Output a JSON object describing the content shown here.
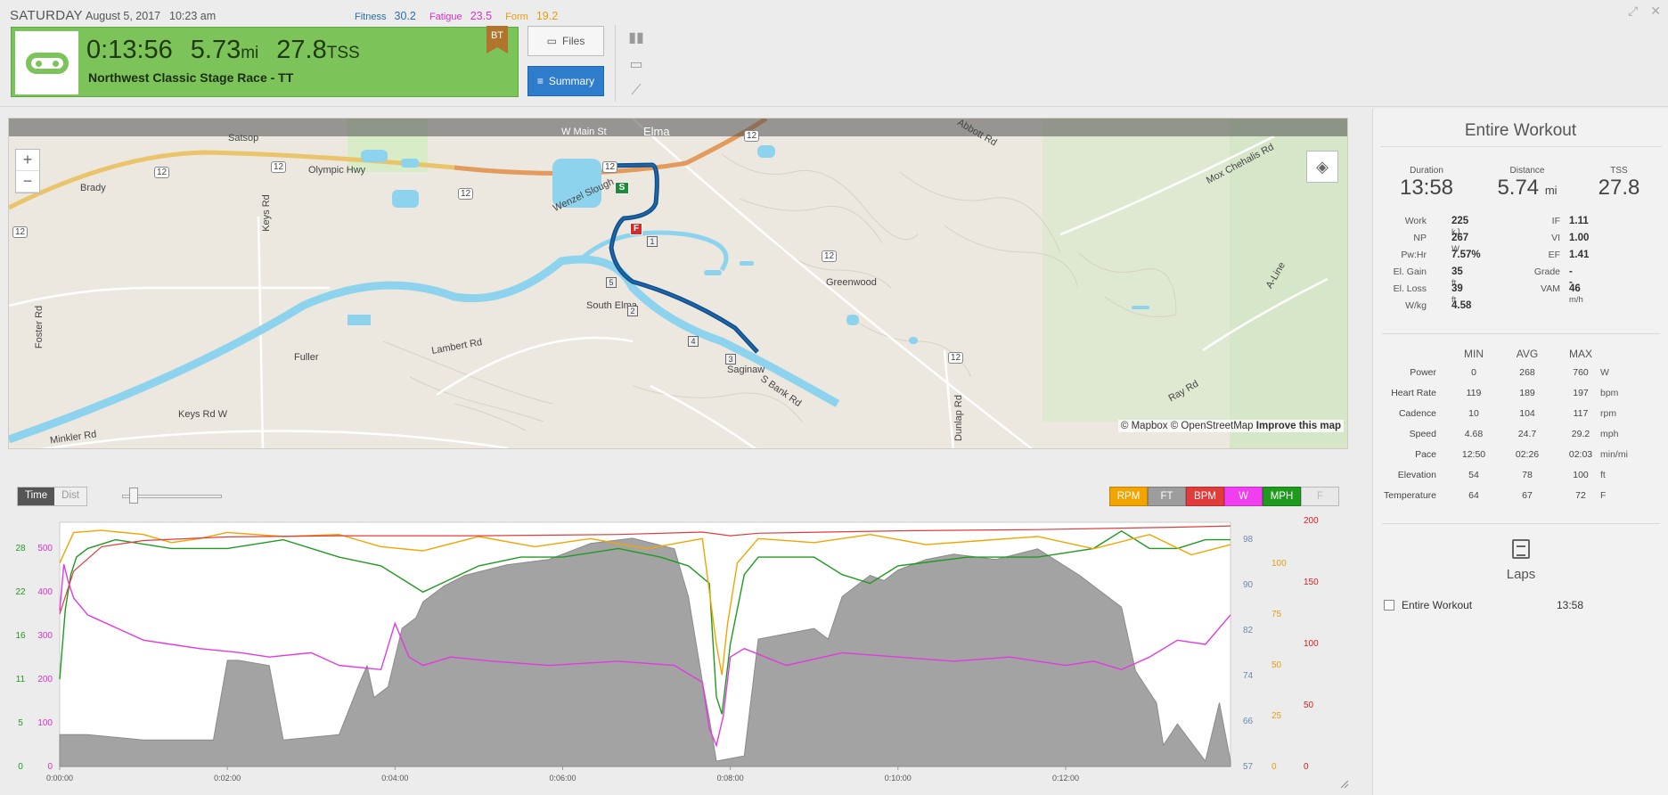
{
  "header": {
    "day": "SATURDAY",
    "date": "August 5, 2017",
    "time": "10:23 am",
    "fitness_label": "Fitness",
    "fitness_value": "30.2",
    "fatigue_label": "Fatigue",
    "fatigue_value": "23.5",
    "form_label": "Form",
    "form_value": "19.2",
    "duration": "0:13:56",
    "distance": "5.73",
    "distance_unit": "mi",
    "tss": "27.8",
    "tss_unit": "TSS",
    "workout_title": "Northwest Classic Stage Race - TT",
    "badge": "BT",
    "files_label": "Files",
    "summary_label": "Summary",
    "card_color": "#7cc35a",
    "accent_color": "#2e7dcc"
  },
  "map": {
    "labels": [
      "W Main St",
      "Elma",
      "Satsop",
      "Brady",
      "Olympic Hwy",
      "Keys Rd",
      "Wenzel Slough",
      "Abbott Rd",
      "Mox Chehalis Rd",
      "Greenwood",
      "A-Line",
      "Foster Rd",
      "Fuller",
      "Lambert Rd",
      "South Elma",
      "Saginaw",
      "S Bank Rd",
      "Keys Rd W",
      "Minkler Rd",
      "Dunlap Rd",
      "Ray Rd"
    ],
    "route_markers": [
      "1",
      "2",
      "3",
      "4",
      "5"
    ],
    "start_marker": "S",
    "finish_marker": "F",
    "highway_shield": "12",
    "zoom_in": "+",
    "zoom_out": "−",
    "attribution_mapbox": "© Mapbox",
    "attribution_osm": "© OpenStreetMap",
    "attribution_improve": "Improve this map"
  },
  "chart_controls": {
    "time_label": "Time",
    "dist_label": "Dist",
    "legend": [
      {
        "label": "RPM",
        "color": "#f2a400"
      },
      {
        "label": "FT",
        "color": "#9d9d9d"
      },
      {
        "label": "BPM",
        "color": "#e13c3c"
      },
      {
        "label": "W",
        "color": "#f03ef0"
      },
      {
        "label": "MPH",
        "color": "#1f9a1f"
      },
      {
        "label": "F",
        "color": "#e8e8e8"
      }
    ]
  },
  "chart_data": {
    "type": "line",
    "x_ticks": [
      "0:00:00",
      "0:02:00",
      "0:04:00",
      "0:06:00",
      "0:08:00",
      "0:10:00",
      "0:12:00"
    ],
    "xlim": [
      0,
      838
    ],
    "axes": {
      "mph": {
        "ticks": [
          "0",
          "5",
          "11",
          "16",
          "22",
          "28"
        ],
        "color": "#1f9a1f"
      },
      "watts": {
        "ticks": [
          "0",
          "100",
          "200",
          "300",
          "400",
          "500"
        ],
        "color": "#d633c6"
      },
      "elevation": {
        "ticks": [
          "57",
          "66",
          "74",
          "82",
          "90",
          "98"
        ],
        "color": "#6a8ab0"
      },
      "rpm": {
        "ticks": [
          "0",
          "25",
          "50",
          "75",
          "100"
        ],
        "color": "#e79d0f"
      },
      "bpm": {
        "ticks": [
          "0",
          "50",
          "100",
          "150",
          "200"
        ],
        "color": "#d42020"
      }
    },
    "series": [
      {
        "name": "FT",
        "color": "#9d9d9d",
        "ylim": [
          54,
          100
        ],
        "x": [
          0,
          20,
          60,
          110,
          120,
          128,
          150,
          160,
          200,
          215,
          220,
          225,
          235,
          245,
          255,
          260,
          275,
          290,
          320,
          350,
          380,
          410,
          440,
          450,
          460,
          465,
          470,
          490,
          500,
          520,
          540,
          550,
          560,
          575,
          580,
          590,
          600,
          620,
          640,
          670,
          700,
          730,
          760,
          770,
          785,
          790,
          800,
          820,
          830,
          838
        ],
        "values": [
          60,
          60,
          59,
          59,
          74,
          74,
          73,
          59,
          60,
          70,
          73,
          67,
          69,
          80,
          82,
          85,
          88,
          90,
          92,
          93,
          96,
          97,
          95,
          86,
          70,
          63,
          55,
          56,
          78,
          79,
          80,
          78,
          86,
          89,
          90,
          89,
          91,
          93,
          94,
          93,
          95,
          90,
          84,
          72,
          66,
          58,
          62,
          55,
          66,
          55
        ]
      },
      {
        "name": "MPH",
        "color": "#1f9a1f",
        "ylim": [
          0,
          28
        ],
        "x": [
          0,
          4,
          8,
          12,
          20,
          40,
          80,
          120,
          160,
          200,
          230,
          250,
          260,
          300,
          330,
          360,
          400,
          430,
          450,
          465,
          470,
          474,
          480,
          490,
          500,
          540,
          560,
          580,
          600,
          650,
          680,
          700,
          740,
          760,
          780,
          800,
          820,
          838
        ],
        "values": [
          10,
          18,
          22,
          24,
          25,
          26,
          25,
          25,
          26,
          24,
          23,
          21,
          20,
          23,
          24,
          24,
          25,
          24,
          23,
          21,
          8,
          6,
          14,
          22,
          24,
          24,
          22,
          21,
          23,
          24,
          24,
          24,
          25,
          27,
          25,
          25,
          26,
          26
        ]
      },
      {
        "name": "W",
        "color": "#e03ae0",
        "ylim": [
          0,
          580
        ],
        "x": [
          0,
          3,
          6,
          10,
          20,
          40,
          60,
          80,
          100,
          130,
          150,
          180,
          200,
          230,
          240,
          250,
          260,
          280,
          310,
          350,
          400,
          440,
          460,
          465,
          470,
          475,
          480,
          490,
          520,
          560,
          600,
          640,
          680,
          720,
          740,
          760,
          780,
          800,
          820,
          838
        ],
        "values": [
          370,
          480,
          440,
          400,
          360,
          330,
          300,
          290,
          280,
          270,
          260,
          270,
          240,
          230,
          340,
          260,
          240,
          260,
          250,
          240,
          250,
          240,
          200,
          90,
          50,
          120,
          260,
          280,
          240,
          270,
          260,
          250,
          260,
          240,
          250,
          230,
          260,
          300,
          290,
          360
        ]
      },
      {
        "name": "RPM",
        "color": "#f2a400",
        "ylim": [
          0,
          120
        ],
        "x": [
          0,
          10,
          30,
          60,
          80,
          100,
          120,
          160,
          200,
          230,
          260,
          300,
          340,
          380,
          420,
          460,
          470,
          474,
          478,
          485,
          500,
          540,
          580,
          620,
          660,
          700,
          740,
          780,
          810,
          838
        ],
        "values": [
          100,
          115,
          116,
          114,
          110,
          112,
          115,
          113,
          114,
          108,
          106,
          113,
          108,
          112,
          107,
          112,
          60,
          45,
          70,
          100,
          112,
          110,
          114,
          109,
          111,
          113,
          107,
          114,
          104,
          109
        ]
      },
      {
        "name": "BPM",
        "color": "#e13c3c",
        "ylim": [
          0,
          200
        ],
        "x": [
          0,
          10,
          30,
          60,
          120,
          200,
          300,
          400,
          460,
          480,
          500,
          600,
          700,
          800,
          838
        ],
        "values": [
          125,
          160,
          180,
          185,
          188,
          189,
          189,
          190,
          192,
          189,
          191,
          193,
          194,
          196,
          197
        ]
      }
    ]
  },
  "summary": {
    "heading": "Entire Workout",
    "kpis": [
      {
        "label": "Duration",
        "value": "13:58",
        "unit": ""
      },
      {
        "label": "Distance",
        "value": "5.74",
        "unit": "mi"
      },
      {
        "label": "TSS",
        "value": "27.8",
        "unit": ""
      }
    ],
    "left_stats": [
      {
        "label": "Work",
        "value": "225",
        "unit": "kJ"
      },
      {
        "label": "NP",
        "value": "267",
        "unit": "W"
      },
      {
        "label": "Pw:Hr",
        "value": "7.57%",
        "unit": ""
      },
      {
        "label": "El. Gain",
        "value": "35",
        "unit": "ft"
      },
      {
        "label": "El. Loss",
        "value": "39",
        "unit": "ft"
      },
      {
        "label": "W/kg",
        "value": "4.58",
        "unit": ""
      }
    ],
    "right_stats": [
      {
        "label": "IF",
        "value": "1.11",
        "unit": ""
      },
      {
        "label": "VI",
        "value": "1.00",
        "unit": ""
      },
      {
        "label": "EF",
        "value": "1.41",
        "unit": ""
      },
      {
        "label": "Grade",
        "value": "--",
        "unit": ""
      },
      {
        "label": "VAM",
        "value": "46",
        "unit": "m/h"
      }
    ],
    "mm_headers": [
      "MIN",
      "AVG",
      "MAX"
    ],
    "mm_rows": [
      {
        "label": "Power",
        "min": "0",
        "avg": "268",
        "max": "760",
        "unit": "W"
      },
      {
        "label": "Heart Rate",
        "min": "119",
        "avg": "189",
        "max": "197",
        "unit": "bpm"
      },
      {
        "label": "Cadence",
        "min": "10",
        "avg": "104",
        "max": "117",
        "unit": "rpm"
      },
      {
        "label": "Speed",
        "min": "4.68",
        "avg": "24.7",
        "max": "29.2",
        "unit": "mph"
      },
      {
        "label": "Pace",
        "min": "12:50",
        "avg": "02:26",
        "max": "02:03",
        "unit": "min/mi"
      },
      {
        "label": "Elevation",
        "min": "54",
        "avg": "78",
        "max": "100",
        "unit": "ft"
      },
      {
        "label": "Temperature",
        "min": "64",
        "avg": "67",
        "max": "72",
        "unit": "F"
      }
    ],
    "laps_title": "Laps",
    "lap_name": "Entire Workout",
    "lap_time": "13:58"
  }
}
